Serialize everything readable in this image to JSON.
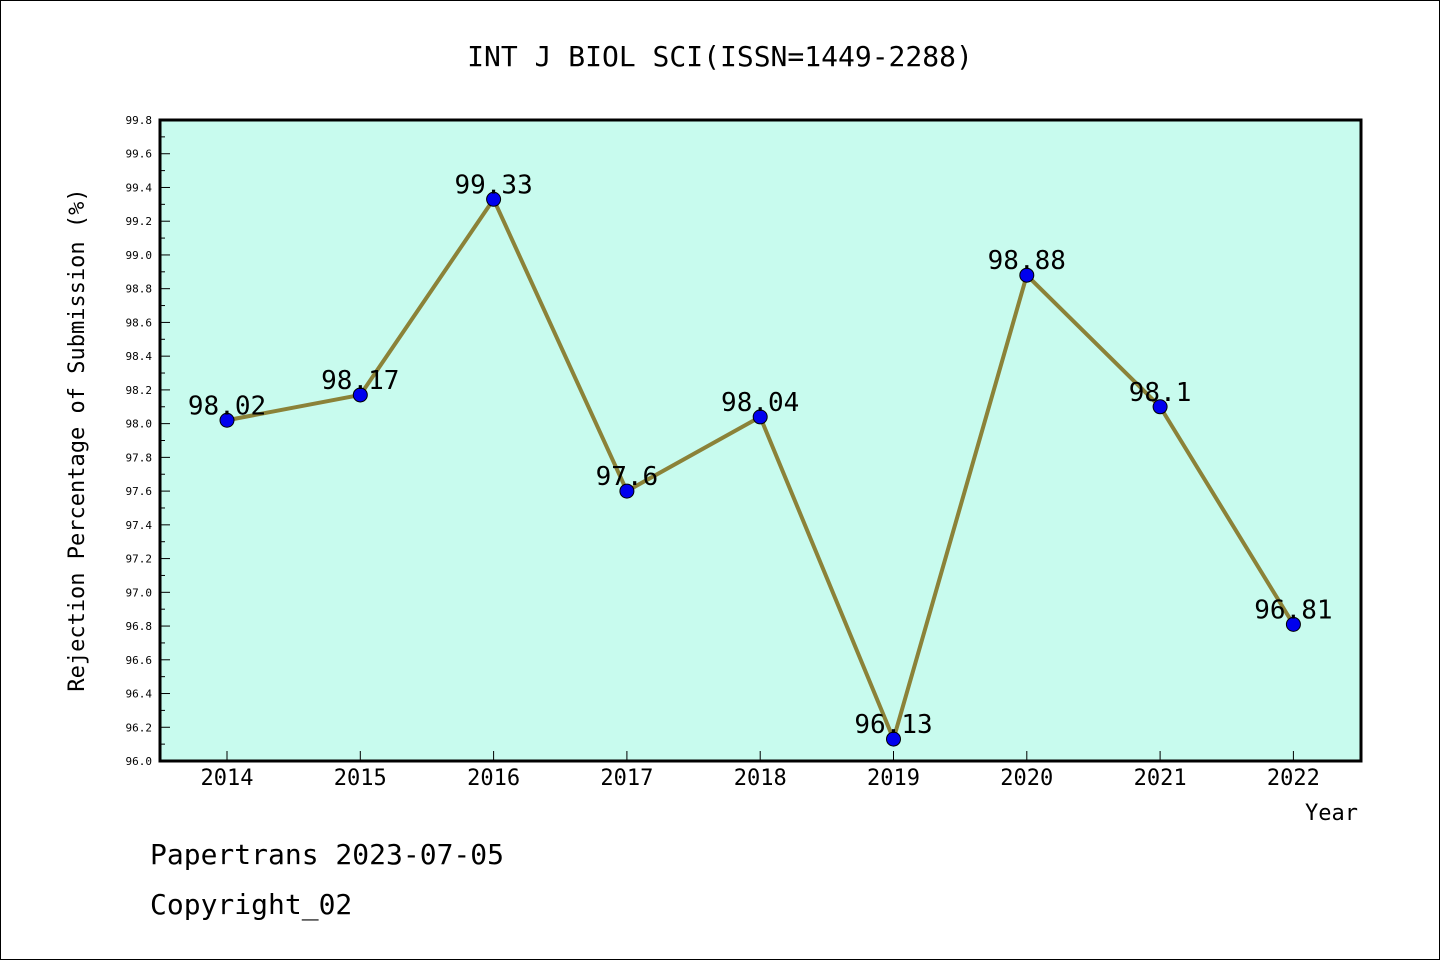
{
  "chart_data": {
    "type": "line",
    "title": "INT J BIOL SCI(ISSN=1449-2288)",
    "xlabel": "Year",
    "ylabel": "Rejection Percentage of Submission (%)",
    "categories": [
      "2014",
      "2015",
      "2016",
      "2017",
      "2018",
      "2019",
      "2020",
      "2021",
      "2022"
    ],
    "series": [
      {
        "values": [
          98.02,
          98.17,
          99.33,
          97.6,
          98.04,
          96.13,
          98.88,
          98.1,
          96.81
        ],
        "labels": [
          "98.02",
          "98.17",
          "99.33",
          "97.6",
          "98.04",
          "96.13",
          "98.88",
          "98.1",
          "96.81"
        ]
      }
    ],
    "ylim": [
      96.0,
      99.8
    ],
    "yticks": [
      "96.0",
      "96.2",
      "96.4",
      "96.6",
      "96.8",
      "97.0",
      "97.2",
      "97.4",
      "97.6",
      "97.8",
      "98.0",
      "98.2",
      "98.4",
      "98.6",
      "98.8",
      "99.0",
      "99.2",
      "99.4",
      "99.6",
      "99.8"
    ],
    "grid": false,
    "colors": {
      "plot_background": "#c8fbee",
      "line": "#8b8238",
      "marker": "#0000ee"
    }
  },
  "footer": {
    "line1": "Papertrans 2023-07-05",
    "line2": "Copyright_02"
  }
}
